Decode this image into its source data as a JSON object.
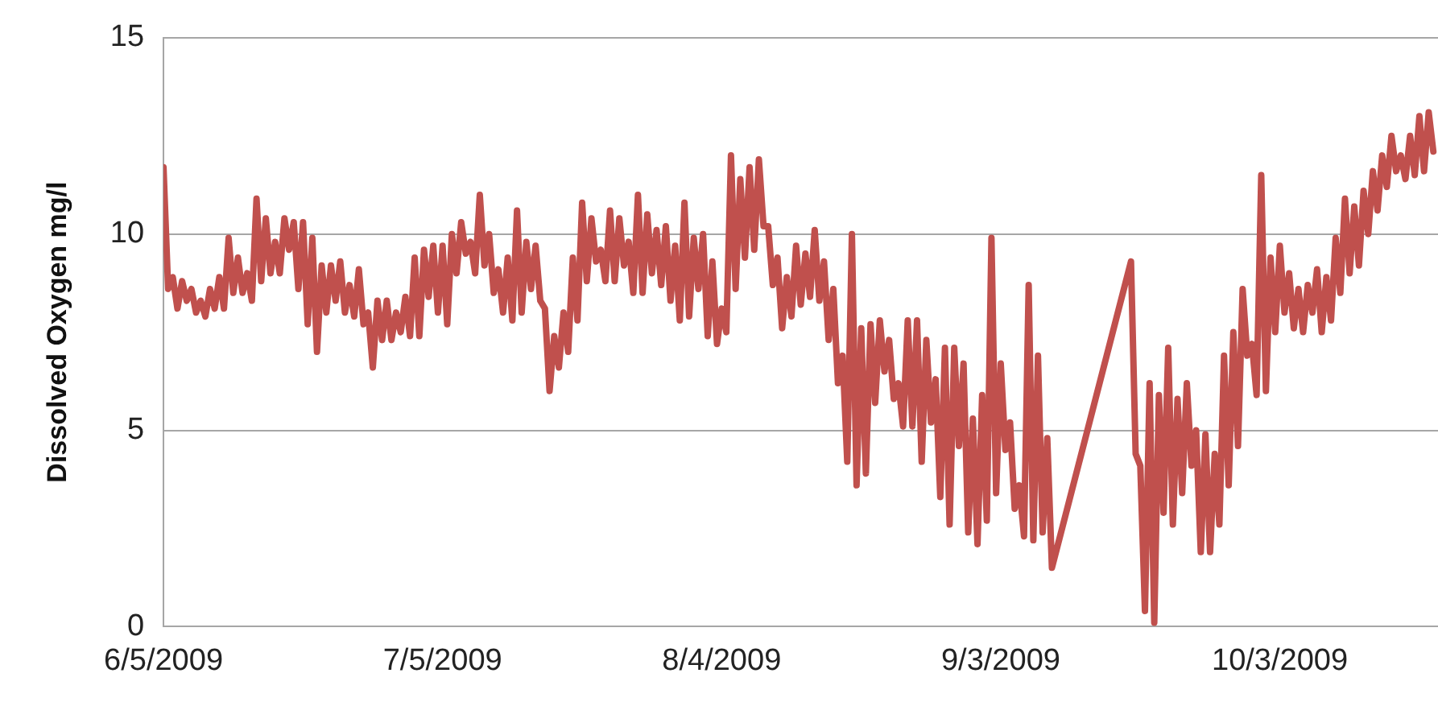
{
  "chart_data": {
    "type": "line",
    "ylabel": "Dissolved Oxygen mg/l",
    "xlim": [
      "2009-06-05",
      "2009-10-20"
    ],
    "xticks": [
      {
        "value": "2009-06-05",
        "label": "6/5/2009"
      },
      {
        "value": "2009-07-05",
        "label": "7/5/2009"
      },
      {
        "value": "2009-08-04",
        "label": "8/4/2009"
      },
      {
        "value": "2009-09-03",
        "label": "9/3/2009"
      },
      {
        "value": "2009-10-03",
        "label": "10/3/2009"
      }
    ],
    "ylim": [
      0,
      15
    ],
    "yticks": [
      0,
      5,
      10,
      15
    ],
    "grid": "y",
    "legend": false,
    "marker": "none",
    "line_style": "solid",
    "series": [
      {
        "color": "#c0504d",
        "x": [
          "2009-06-05T00:00",
          "2009-06-05T12:00",
          "2009-06-06T00:00",
          "2009-06-06T12:00",
          "2009-06-07T00:00",
          "2009-06-07T12:00",
          "2009-06-08T00:00",
          "2009-06-08T12:00",
          "2009-06-09T00:00",
          "2009-06-09T12:00",
          "2009-06-10T00:00",
          "2009-06-10T12:00",
          "2009-06-11T00:00",
          "2009-06-11T12:00",
          "2009-06-12T00:00",
          "2009-06-12T12:00",
          "2009-06-13T00:00",
          "2009-06-13T12:00",
          "2009-06-14T00:00",
          "2009-06-14T12:00",
          "2009-06-15T00:00",
          "2009-06-15T12:00",
          "2009-06-16T00:00",
          "2009-06-16T12:00",
          "2009-06-17T00:00",
          "2009-06-17T12:00",
          "2009-06-18T00:00",
          "2009-06-18T12:00",
          "2009-06-19T00:00",
          "2009-06-19T12:00",
          "2009-06-20T00:00",
          "2009-06-20T12:00",
          "2009-06-21T00:00",
          "2009-06-21T12:00",
          "2009-06-22T00:00",
          "2009-06-22T12:00",
          "2009-06-23T00:00",
          "2009-06-23T12:00",
          "2009-06-24T00:00",
          "2009-06-24T12:00",
          "2009-06-25T00:00",
          "2009-06-25T12:00",
          "2009-06-26T00:00",
          "2009-06-26T12:00",
          "2009-06-27T00:00",
          "2009-06-27T12:00",
          "2009-06-28T00:00",
          "2009-06-28T12:00",
          "2009-06-29T00:00",
          "2009-06-29T12:00",
          "2009-06-30T00:00",
          "2009-06-30T12:00",
          "2009-07-01T00:00",
          "2009-07-01T12:00",
          "2009-07-02T00:00",
          "2009-07-02T12:00",
          "2009-07-03T00:00",
          "2009-07-03T12:00",
          "2009-07-04T00:00",
          "2009-07-04T12:00",
          "2009-07-05T00:00",
          "2009-07-05T12:00",
          "2009-07-06T00:00",
          "2009-07-06T12:00",
          "2009-07-07T00:00",
          "2009-07-07T12:00",
          "2009-07-08T00:00",
          "2009-07-08T12:00",
          "2009-07-09T00:00",
          "2009-07-09T12:00",
          "2009-07-10T00:00",
          "2009-07-10T12:00",
          "2009-07-11T00:00",
          "2009-07-11T12:00",
          "2009-07-12T00:00",
          "2009-07-12T12:00",
          "2009-07-13T00:00",
          "2009-07-13T12:00",
          "2009-07-14T00:00",
          "2009-07-14T12:00",
          "2009-07-15T00:00",
          "2009-07-15T12:00",
          "2009-07-16T00:00",
          "2009-07-16T12:00",
          "2009-07-17T00:00",
          "2009-07-17T12:00",
          "2009-07-18T00:00",
          "2009-07-18T12:00",
          "2009-07-19T00:00",
          "2009-07-19T12:00",
          "2009-07-20T00:00",
          "2009-07-20T12:00",
          "2009-07-21T00:00",
          "2009-07-21T12:00",
          "2009-07-22T00:00",
          "2009-07-22T12:00",
          "2009-07-23T00:00",
          "2009-07-23T12:00",
          "2009-07-24T00:00",
          "2009-07-24T12:00",
          "2009-07-25T00:00",
          "2009-07-25T12:00",
          "2009-07-26T00:00",
          "2009-07-26T12:00",
          "2009-07-27T00:00",
          "2009-07-27T12:00",
          "2009-07-28T00:00",
          "2009-07-28T12:00",
          "2009-07-29T00:00",
          "2009-07-29T12:00",
          "2009-07-30T00:00",
          "2009-07-30T12:00",
          "2009-07-31T00:00",
          "2009-07-31T12:00",
          "2009-08-01T00:00",
          "2009-08-01T12:00",
          "2009-08-02T00:00",
          "2009-08-02T12:00",
          "2009-08-03T00:00",
          "2009-08-03T12:00",
          "2009-08-04T00:00",
          "2009-08-04T12:00",
          "2009-08-05T00:00",
          "2009-08-05T12:00",
          "2009-08-06T00:00",
          "2009-08-06T12:00",
          "2009-08-07T00:00",
          "2009-08-07T12:00",
          "2009-08-08T00:00",
          "2009-08-08T12:00",
          "2009-08-09T00:00",
          "2009-08-09T12:00",
          "2009-08-10T00:00",
          "2009-08-10T12:00",
          "2009-08-11T00:00",
          "2009-08-11T12:00",
          "2009-08-12T00:00",
          "2009-08-12T12:00",
          "2009-08-13T00:00",
          "2009-08-13T12:00",
          "2009-08-14T00:00",
          "2009-08-14T12:00",
          "2009-08-15T00:00",
          "2009-08-15T12:00",
          "2009-08-16T00:00",
          "2009-08-16T12:00",
          "2009-08-17T00:00",
          "2009-08-17T12:00",
          "2009-08-18T00:00",
          "2009-08-18T12:00",
          "2009-08-19T00:00",
          "2009-08-19T12:00",
          "2009-08-20T00:00",
          "2009-08-20T12:00",
          "2009-08-21T00:00",
          "2009-08-21T12:00",
          "2009-08-22T00:00",
          "2009-08-22T12:00",
          "2009-08-23T00:00",
          "2009-08-23T12:00",
          "2009-08-24T00:00",
          "2009-08-24T12:00",
          "2009-08-25T00:00",
          "2009-08-25T12:00",
          "2009-08-26T00:00",
          "2009-08-26T12:00",
          "2009-08-27T00:00",
          "2009-08-27T12:00",
          "2009-08-28T00:00",
          "2009-08-28T12:00",
          "2009-08-29T00:00",
          "2009-08-29T12:00",
          "2009-08-30T00:00",
          "2009-08-30T12:00",
          "2009-08-31T00:00",
          "2009-08-31T12:00",
          "2009-09-01T00:00",
          "2009-09-01T12:00",
          "2009-09-02T00:00",
          "2009-09-02T12:00",
          "2009-09-03T00:00",
          "2009-09-03T12:00",
          "2009-09-04T00:00",
          "2009-09-04T12:00",
          "2009-09-05T00:00",
          "2009-09-05T12:00",
          "2009-09-06T00:00",
          "2009-09-06T12:00",
          "2009-09-07T00:00",
          "2009-09-07T12:00",
          "2009-09-08T00:00",
          "2009-09-08T12:00",
          "2009-09-17T00:00",
          "2009-09-17T12:00",
          "2009-09-18T00:00",
          "2009-09-18T12:00",
          "2009-09-19T00:00",
          "2009-09-19T12:00",
          "2009-09-20T00:00",
          "2009-09-20T12:00",
          "2009-09-21T00:00",
          "2009-09-21T12:00",
          "2009-09-22T00:00",
          "2009-09-22T12:00",
          "2009-09-23T00:00",
          "2009-09-23T12:00",
          "2009-09-24T00:00",
          "2009-09-24T12:00",
          "2009-09-25T00:00",
          "2009-09-25T12:00",
          "2009-09-26T00:00",
          "2009-09-26T12:00",
          "2009-09-27T00:00",
          "2009-09-27T12:00",
          "2009-09-28T00:00",
          "2009-09-28T12:00",
          "2009-09-29T00:00",
          "2009-09-29T12:00",
          "2009-09-30T00:00",
          "2009-09-30T12:00",
          "2009-10-01T00:00",
          "2009-10-01T12:00",
          "2009-10-02T00:00",
          "2009-10-02T12:00",
          "2009-10-03T00:00",
          "2009-10-03T12:00",
          "2009-10-04T00:00",
          "2009-10-04T12:00",
          "2009-10-05T00:00",
          "2009-10-05T12:00",
          "2009-10-06T00:00",
          "2009-10-06T12:00",
          "2009-10-07T00:00",
          "2009-10-07T12:00",
          "2009-10-08T00:00",
          "2009-10-08T12:00",
          "2009-10-09T00:00",
          "2009-10-09T12:00",
          "2009-10-10T00:00",
          "2009-10-10T12:00",
          "2009-10-11T00:00",
          "2009-10-11T12:00",
          "2009-10-12T00:00",
          "2009-10-12T12:00",
          "2009-10-13T00:00",
          "2009-10-13T12:00",
          "2009-10-14T00:00",
          "2009-10-14T12:00",
          "2009-10-15T00:00",
          "2009-10-15T12:00",
          "2009-10-16T00:00",
          "2009-10-16T12:00",
          "2009-10-17T00:00",
          "2009-10-17T12:00",
          "2009-10-18T00:00",
          "2009-10-18T12:00",
          "2009-10-19T00:00",
          "2009-10-19T12:00"
        ],
        "values": [
          11.7,
          8.6,
          8.9,
          8.1,
          8.8,
          8.3,
          8.6,
          8.0,
          8.3,
          7.9,
          8.6,
          8.1,
          8.9,
          8.1,
          9.9,
          8.5,
          9.4,
          8.5,
          9.0,
          8.3,
          10.9,
          8.8,
          10.4,
          9.0,
          9.8,
          9.0,
          10.4,
          9.6,
          10.3,
          8.6,
          10.3,
          7.7,
          9.9,
          7.0,
          9.2,
          8.0,
          9.2,
          8.3,
          9.3,
          8.0,
          8.7,
          7.9,
          9.1,
          7.7,
          8.0,
          6.6,
          8.3,
          7.3,
          8.3,
          7.3,
          8.0,
          7.5,
          8.4,
          7.4,
          9.4,
          7.4,
          9.6,
          8.4,
          9.7,
          8.0,
          9.7,
          7.7,
          10.0,
          9.0,
          10.3,
          9.5,
          9.8,
          9.0,
          11.0,
          9.2,
          10.0,
          8.5,
          9.1,
          8.0,
          9.4,
          7.8,
          10.6,
          8.0,
          9.8,
          8.6,
          9.7,
          8.3,
          8.1,
          6.0,
          7.4,
          6.6,
          8.0,
          7.0,
          9.4,
          7.8,
          10.8,
          8.8,
          10.4,
          9.3,
          9.6,
          8.8,
          10.6,
          8.8,
          10.4,
          9.2,
          9.8,
          8.5,
          11.0,
          8.5,
          10.5,
          9.0,
          10.1,
          8.7,
          10.2,
          8.3,
          9.7,
          7.8,
          10.8,
          7.9,
          9.9,
          8.6,
          10.0,
          7.4,
          9.3,
          7.2,
          8.1,
          7.5,
          12.0,
          8.6,
          11.4,
          9.4,
          11.7,
          9.6,
          11.9,
          10.2,
          10.2,
          8.7,
          9.4,
          7.6,
          8.9,
          7.9,
          9.7,
          8.2,
          9.5,
          8.4,
          10.1,
          8.3,
          9.3,
          7.3,
          8.6,
          6.2,
          6.9,
          4.2,
          10.0,
          3.6,
          7.6,
          3.9,
          7.7,
          5.7,
          7.8,
          6.5,
          7.3,
          5.8,
          6.2,
          5.1,
          7.8,
          5.1,
          7.8,
          4.2,
          7.3,
          5.2,
          6.3,
          3.3,
          7.1,
          2.6,
          7.1,
          4.6,
          6.7,
          2.4,
          5.3,
          2.1,
          5.9,
          2.7,
          9.9,
          3.4,
          6.7,
          4.5,
          5.2,
          3.0,
          3.6,
          2.3,
          8.7,
          2.2,
          6.9,
          2.4,
          4.8,
          1.5,
          9.3,
          4.4,
          4.1,
          0.4,
          6.2,
          0.1,
          5.9,
          2.9,
          7.1,
          2.6,
          5.8,
          3.4,
          6.2,
          4.1,
          5.0,
          1.9,
          4.9,
          1.9,
          4.4,
          2.6,
          6.9,
          3.6,
          7.5,
          4.6,
          8.6,
          6.9,
          7.2,
          5.9,
          11.5,
          6.0,
          9.4,
          7.5,
          9.7,
          8.0,
          9.0,
          7.6,
          8.6,
          7.5,
          8.7,
          8.0,
          9.1,
          7.5,
          8.9,
          7.8,
          9.9,
          8.5,
          10.9,
          9.0,
          10.7,
          9.2,
          11.1,
          10.0,
          11.6,
          10.6,
          12.0,
          11.2,
          12.5,
          11.6,
          12.0,
          11.4,
          12.5,
          11.5,
          13.0,
          11.6,
          13.1,
          12.1
        ]
      }
    ]
  }
}
